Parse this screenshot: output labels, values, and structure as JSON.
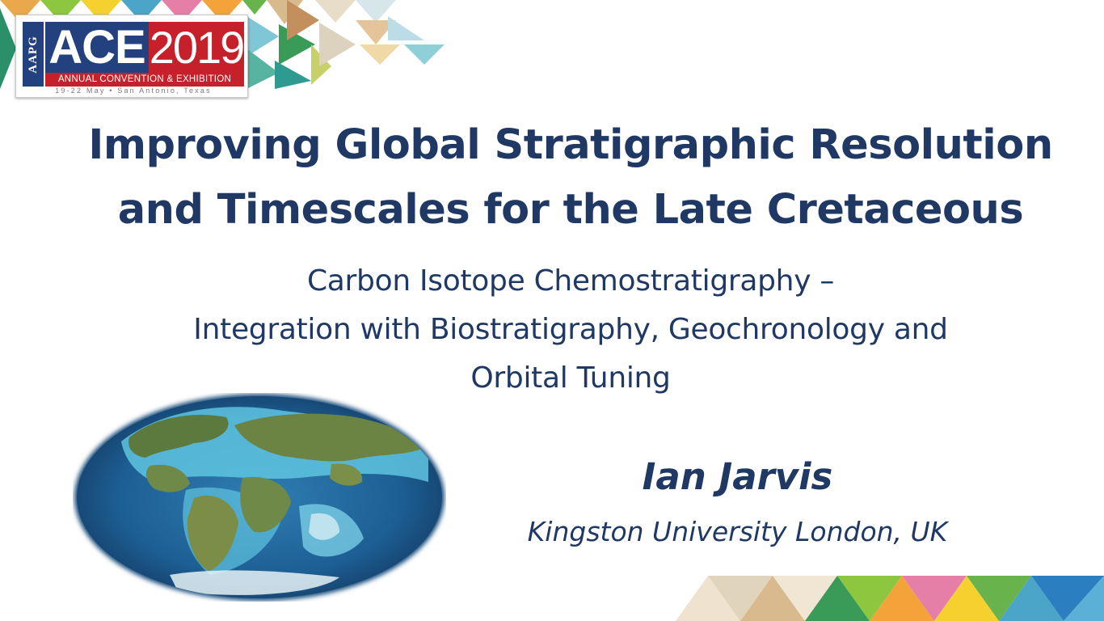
{
  "logo": {
    "org": "AAPG",
    "event": "ACE",
    "year": "2019",
    "subtitle": "ANNUAL CONVENTION & EXHIBITION",
    "dates": "19-22 May • San Antonio, Texas"
  },
  "title": {
    "line1": "Improving Global Stratigraphic Resolution",
    "line2": "and Timescales for the Late Cretaceous"
  },
  "subtitle": {
    "line1": "Carbon Isotope Chemostratigraphy –",
    "line2": "Integration with Biostratigraphy, Geochronology and",
    "line3": "Orbital Tuning"
  },
  "author": "Ian Jarvis",
  "affiliation": "Kingston University London, UK",
  "colors": {
    "text": "#1f3864",
    "logo_blue": "#23407f",
    "logo_red": "#c6202a"
  }
}
